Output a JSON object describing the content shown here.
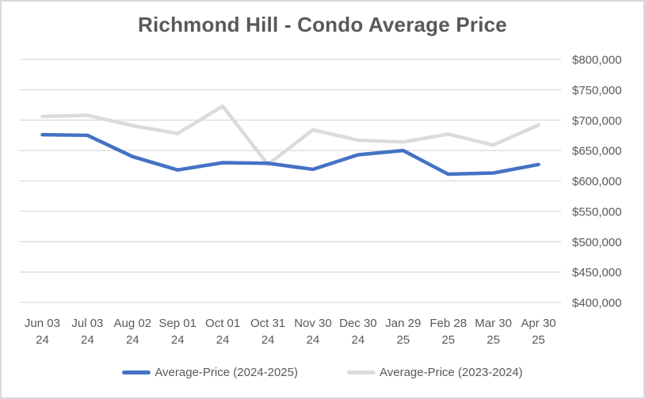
{
  "title": "Richmond Hill - Condo Average Price",
  "chart_data": {
    "type": "line",
    "title": "Richmond Hill - Condo Average Price",
    "categories": [
      "Jun 03 24",
      "Jul 03 24",
      "Aug 02 24",
      "Sep 01 24",
      "Oct 01 24",
      "Oct 31 24",
      "Nov 30 24",
      "Dec 30 24",
      "Jan 29 25",
      "Feb 28 25",
      "Mar 30 25",
      "Apr 30 25"
    ],
    "series": [
      {
        "name": "Average-Price (2024-2025)",
        "color": "#4472C4",
        "values": [
          676000,
          675000,
          640000,
          618000,
          630000,
          629000,
          619000,
          643000,
          650000,
          611000,
          613000,
          627000
        ]
      },
      {
        "name": "Average-Price (2023-2024)",
        "color": "#DBDBDB",
        "values": [
          706000,
          708000,
          691000,
          678000,
          723000,
          627000,
          684000,
          667000,
          664000,
          677000,
          659000,
          692000
        ]
      }
    ],
    "xlabel": "",
    "ylabel": "",
    "ylim": [
      400000,
      800000
    ],
    "ytick_step": 50000,
    "ytick_labels": [
      "$400,000",
      "$450,000",
      "$500,000",
      "$550,000",
      "$600,000",
      "$650,000",
      "$700,000",
      "$750,000",
      "$800,000"
    ],
    "grid": true,
    "gridline_color": "#D9D9D9",
    "text_color": "#595959",
    "y_axis_side": "right",
    "legend_position": "bottom"
  }
}
